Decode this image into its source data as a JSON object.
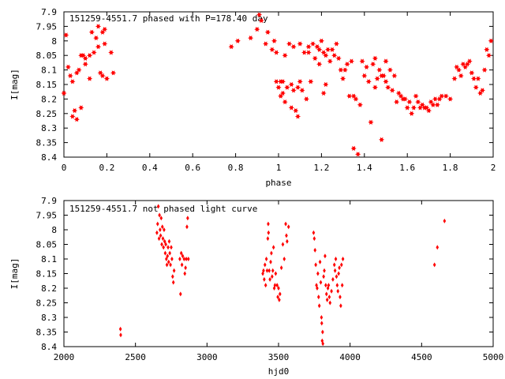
{
  "chart_data": [
    {
      "type": "scatter",
      "title": "151259-4551.7 phased with P=178.40 day",
      "xlabel": "phase",
      "ylabel": "I[mag]",
      "xlim": [
        0,
        2
      ],
      "ylim": [
        7.9,
        8.4
      ],
      "y_inverted": true,
      "grid": false,
      "marker": "star",
      "color": "#ff0000",
      "x_ticks": [
        "0",
        "0.2",
        "0.4",
        "0.6",
        "0.8",
        "1",
        "1.2",
        "1.4",
        "1.6",
        "1.8",
        "2"
      ],
      "y_ticks": [
        "7.9",
        "7.95",
        "8",
        "8.05",
        "8.1",
        "8.15",
        "8.2",
        "8.25",
        "8.3",
        "8.35",
        "8.4"
      ],
      "points": [
        [
          0.0,
          8.18
        ],
        [
          0.01,
          7.98
        ],
        [
          0.02,
          8.09
        ],
        [
          0.03,
          8.12
        ],
        [
          0.04,
          8.14
        ],
        [
          0.04,
          8.26
        ],
        [
          0.05,
          8.24
        ],
        [
          0.06,
          8.27
        ],
        [
          0.06,
          8.11
        ],
        [
          0.07,
          8.1
        ],
        [
          0.08,
          8.05
        ],
        [
          0.08,
          8.23
        ],
        [
          0.09,
          8.05
        ],
        [
          0.1,
          8.08
        ],
        [
          0.1,
          8.06
        ],
        [
          0.12,
          8.13
        ],
        [
          0.12,
          8.05
        ],
        [
          0.13,
          7.97
        ],
        [
          0.14,
          8.04
        ],
        [
          0.15,
          7.99
        ],
        [
          0.16,
          8.02
        ],
        [
          0.16,
          7.95
        ],
        [
          0.17,
          8.11
        ],
        [
          0.18,
          7.97
        ],
        [
          0.18,
          8.12
        ],
        [
          0.19,
          8.01
        ],
        [
          0.19,
          7.96
        ],
        [
          0.2,
          8.13
        ],
        [
          0.22,
          8.04
        ],
        [
          0.23,
          8.11
        ],
        [
          0.78,
          8.02
        ],
        [
          0.81,
          8.0
        ],
        [
          0.87,
          7.99
        ],
        [
          0.9,
          7.96
        ],
        [
          0.91,
          7.91
        ],
        [
          0.92,
          7.93
        ],
        [
          0.94,
          8.01
        ],
        [
          0.95,
          7.97
        ],
        [
          0.97,
          8.03
        ],
        [
          0.98,
          8.0
        ],
        [
          0.99,
          8.04
        ],
        [
          0.99,
          8.14
        ],
        [
          1.0,
          8.16
        ],
        [
          1.01,
          8.14
        ],
        [
          1.01,
          8.19
        ],
        [
          1.02,
          8.14
        ],
        [
          1.02,
          8.18
        ],
        [
          1.03,
          8.21
        ],
        [
          1.03,
          8.05
        ],
        [
          1.04,
          8.16
        ],
        [
          1.05,
          8.01
        ],
        [
          1.06,
          8.15
        ],
        [
          1.06,
          8.23
        ],
        [
          1.07,
          8.02
        ],
        [
          1.07,
          8.17
        ],
        [
          1.08,
          8.24
        ],
        [
          1.09,
          8.16
        ],
        [
          1.09,
          8.26
        ],
        [
          1.1,
          8.14
        ],
        [
          1.1,
          8.01
        ],
        [
          1.11,
          8.17
        ],
        [
          1.12,
          8.04
        ],
        [
          1.13,
          8.2
        ],
        [
          1.14,
          8.02
        ],
        [
          1.14,
          8.04
        ],
        [
          1.15,
          8.14
        ],
        [
          1.16,
          8.01
        ],
        [
          1.17,
          8.06
        ],
        [
          1.18,
          8.02
        ],
        [
          1.19,
          8.03
        ],
        [
          1.19,
          8.08
        ],
        [
          1.2,
          8.0
        ],
        [
          1.21,
          8.04
        ],
        [
          1.21,
          8.18
        ],
        [
          1.22,
          8.05
        ],
        [
          1.22,
          8.15
        ],
        [
          1.23,
          8.03
        ],
        [
          1.24,
          8.07
        ],
        [
          1.25,
          8.03
        ],
        [
          1.26,
          8.05
        ],
        [
          1.27,
          8.01
        ],
        [
          1.28,
          8.06
        ],
        [
          1.29,
          8.1
        ],
        [
          1.3,
          8.13
        ],
        [
          1.31,
          8.1
        ],
        [
          1.32,
          8.08
        ],
        [
          1.33,
          8.19
        ],
        [
          1.34,
          8.07
        ],
        [
          1.35,
          8.19
        ],
        [
          1.35,
          8.37
        ],
        [
          1.36,
          8.2
        ],
        [
          1.37,
          8.39
        ],
        [
          1.38,
          8.22
        ],
        [
          1.39,
          8.07
        ],
        [
          1.4,
          8.12
        ],
        [
          1.41,
          8.09
        ],
        [
          1.42,
          8.14
        ],
        [
          1.43,
          8.28
        ],
        [
          1.44,
          8.08
        ],
        [
          1.45,
          8.16
        ],
        [
          1.45,
          8.06
        ],
        [
          1.46,
          8.13
        ],
        [
          1.47,
          8.1
        ],
        [
          1.48,
          8.12
        ],
        [
          1.48,
          8.34
        ],
        [
          1.49,
          8.12
        ],
        [
          1.5,
          8.14
        ],
        [
          1.5,
          8.07
        ],
        [
          1.51,
          8.16
        ],
        [
          1.52,
          8.1
        ],
        [
          1.53,
          8.17
        ],
        [
          1.54,
          8.12
        ],
        [
          1.55,
          8.21
        ],
        [
          1.56,
          8.18
        ],
        [
          1.57,
          8.19
        ],
        [
          1.58,
          8.2
        ],
        [
          1.59,
          8.2
        ],
        [
          1.6,
          8.23
        ],
        [
          1.61,
          8.21
        ],
        [
          1.62,
          8.25
        ],
        [
          1.63,
          8.23
        ],
        [
          1.64,
          8.19
        ],
        [
          1.65,
          8.21
        ],
        [
          1.66,
          8.23
        ],
        [
          1.67,
          8.22
        ],
        [
          1.68,
          8.23
        ],
        [
          1.69,
          8.23
        ],
        [
          1.7,
          8.24
        ],
        [
          1.71,
          8.21
        ],
        [
          1.72,
          8.22
        ],
        [
          1.73,
          8.2
        ],
        [
          1.74,
          8.22
        ],
        [
          1.75,
          8.2
        ],
        [
          1.76,
          8.19
        ],
        [
          1.78,
          8.19
        ],
        [
          1.8,
          8.2
        ],
        [
          1.82,
          8.13
        ],
        [
          1.83,
          8.09
        ],
        [
          1.84,
          8.1
        ],
        [
          1.85,
          8.12
        ],
        [
          1.86,
          8.08
        ],
        [
          1.87,
          8.09
        ],
        [
          1.88,
          8.08
        ],
        [
          1.89,
          8.07
        ],
        [
          1.9,
          8.11
        ],
        [
          1.91,
          8.13
        ],
        [
          1.92,
          8.16
        ],
        [
          1.93,
          8.13
        ],
        [
          1.94,
          8.18
        ],
        [
          1.95,
          8.17
        ],
        [
          1.96,
          8.1
        ],
        [
          1.97,
          8.03
        ],
        [
          1.98,
          8.05
        ],
        [
          1.99,
          8.0
        ]
      ]
    },
    {
      "type": "scatter",
      "title": "151259-4551.7 not phased light curve",
      "xlabel": "hjd0",
      "ylabel": "I[mag]",
      "xlim": [
        2000,
        5000
      ],
      "ylim": [
        7.9,
        8.4
      ],
      "y_inverted": true,
      "grid": false,
      "marker": "diamond",
      "color": "#ff0000",
      "x_ticks": [
        "2000",
        "2500",
        "3000",
        "3500",
        "4000",
        "4500",
        "5000"
      ],
      "y_ticks": [
        "7.9",
        "7.95",
        "8",
        "8.05",
        "8.1",
        "8.15",
        "8.2",
        "8.25",
        "8.3",
        "8.35",
        "8.4"
      ],
      "points": [
        [
          2395,
          8.34
        ],
        [
          2397,
          8.36
        ],
        [
          2650,
          8.01
        ],
        [
          2655,
          7.98
        ],
        [
          2660,
          7.92
        ],
        [
          2665,
          8.03
        ],
        [
          2668,
          7.95
        ],
        [
          2672,
          8.0
        ],
        [
          2676,
          8.02
        ],
        [
          2680,
          7.96
        ],
        [
          2684,
          8.05
        ],
        [
          2688,
          7.99
        ],
        [
          2692,
          8.03
        ],
        [
          2696,
          8.06
        ],
        [
          2700,
          8.0
        ],
        [
          2704,
          8.04
        ],
        [
          2708,
          8.08
        ],
        [
          2712,
          8.05
        ],
        [
          2716,
          8.1
        ],
        [
          2720,
          8.12
        ],
        [
          2724,
          8.09
        ],
        [
          2728,
          8.06
        ],
        [
          2732,
          8.11
        ],
        [
          2736,
          8.04
        ],
        [
          2740,
          8.08
        ],
        [
          2745,
          8.12
        ],
        [
          2750,
          8.06
        ],
        [
          2755,
          8.1
        ],
        [
          2760,
          8.16
        ],
        [
          2765,
          8.18
        ],
        [
          2770,
          8.14
        ],
        [
          2810,
          8.1
        ],
        [
          2815,
          8.22
        ],
        [
          2820,
          8.08
        ],
        [
          2825,
          8.12
        ],
        [
          2830,
          8.09
        ],
        [
          2840,
          8.1
        ],
        [
          2845,
          8.15
        ],
        [
          2850,
          8.13
        ],
        [
          2855,
          8.1
        ],
        [
          2860,
          7.99
        ],
        [
          2865,
          7.96
        ],
        [
          2870,
          8.1
        ],
        [
          3390,
          8.15
        ],
        [
          3395,
          8.14
        ],
        [
          3400,
          8.17
        ],
        [
          3405,
          8.12
        ],
        [
          3410,
          8.19
        ],
        [
          3415,
          8.1
        ],
        [
          3420,
          8.14
        ],
        [
          3425,
          8.03
        ],
        [
          3428,
          7.98
        ],
        [
          3430,
          8.01
        ],
        [
          3435,
          8.14
        ],
        [
          3440,
          8.17
        ],
        [
          3445,
          8.11
        ],
        [
          3450,
          8.08
        ],
        [
          3455,
          8.16
        ],
        [
          3460,
          8.14
        ],
        [
          3465,
          8.06
        ],
        [
          3470,
          8.2
        ],
        [
          3475,
          8.19
        ],
        [
          3480,
          8.15
        ],
        [
          3490,
          8.19
        ],
        [
          3495,
          8.23
        ],
        [
          3500,
          8.2
        ],
        [
          3505,
          8.24
        ],
        [
          3510,
          8.22
        ],
        [
          3520,
          8.13
        ],
        [
          3530,
          8.05
        ],
        [
          3540,
          8.1
        ],
        [
          3550,
          7.98
        ],
        [
          3555,
          8.02
        ],
        [
          3560,
          8.04
        ],
        [
          3570,
          7.99
        ],
        [
          3745,
          8.01
        ],
        [
          3750,
          8.03
        ],
        [
          3755,
          8.07
        ],
        [
          3760,
          8.12
        ],
        [
          3765,
          8.19
        ],
        [
          3770,
          8.2
        ],
        [
          3775,
          8.15
        ],
        [
          3780,
          8.23
        ],
        [
          3785,
          8.26
        ],
        [
          3790,
          8.11
        ],
        [
          3795,
          8.18
        ],
        [
          3800,
          8.3
        ],
        [
          3802,
          8.32
        ],
        [
          3805,
          8.38
        ],
        [
          3808,
          8.35
        ],
        [
          3810,
          8.39
        ],
        [
          3815,
          8.16
        ],
        [
          3820,
          8.14
        ],
        [
          3825,
          8.09
        ],
        [
          3830,
          8.19
        ],
        [
          3835,
          8.22
        ],
        [
          3840,
          8.24
        ],
        [
          3845,
          8.2
        ],
        [
          3850,
          8.19
        ],
        [
          3855,
          8.23
        ],
        [
          3860,
          8.25
        ],
        [
          3870,
          8.21
        ],
        [
          3880,
          8.17
        ],
        [
          3890,
          8.12
        ],
        [
          3895,
          8.14
        ],
        [
          3900,
          8.1
        ],
        [
          3905,
          8.16
        ],
        [
          3910,
          8.19
        ],
        [
          3915,
          8.21
        ],
        [
          3920,
          8.15
        ],
        [
          3925,
          8.13
        ],
        [
          3930,
          8.23
        ],
        [
          3935,
          8.26
        ],
        [
          3940,
          8.12
        ],
        [
          3945,
          8.19
        ],
        [
          3950,
          8.1
        ],
        [
          4590,
          8.12
        ],
        [
          4610,
          8.06
        ],
        [
          4660,
          7.97
        ]
      ]
    }
  ]
}
